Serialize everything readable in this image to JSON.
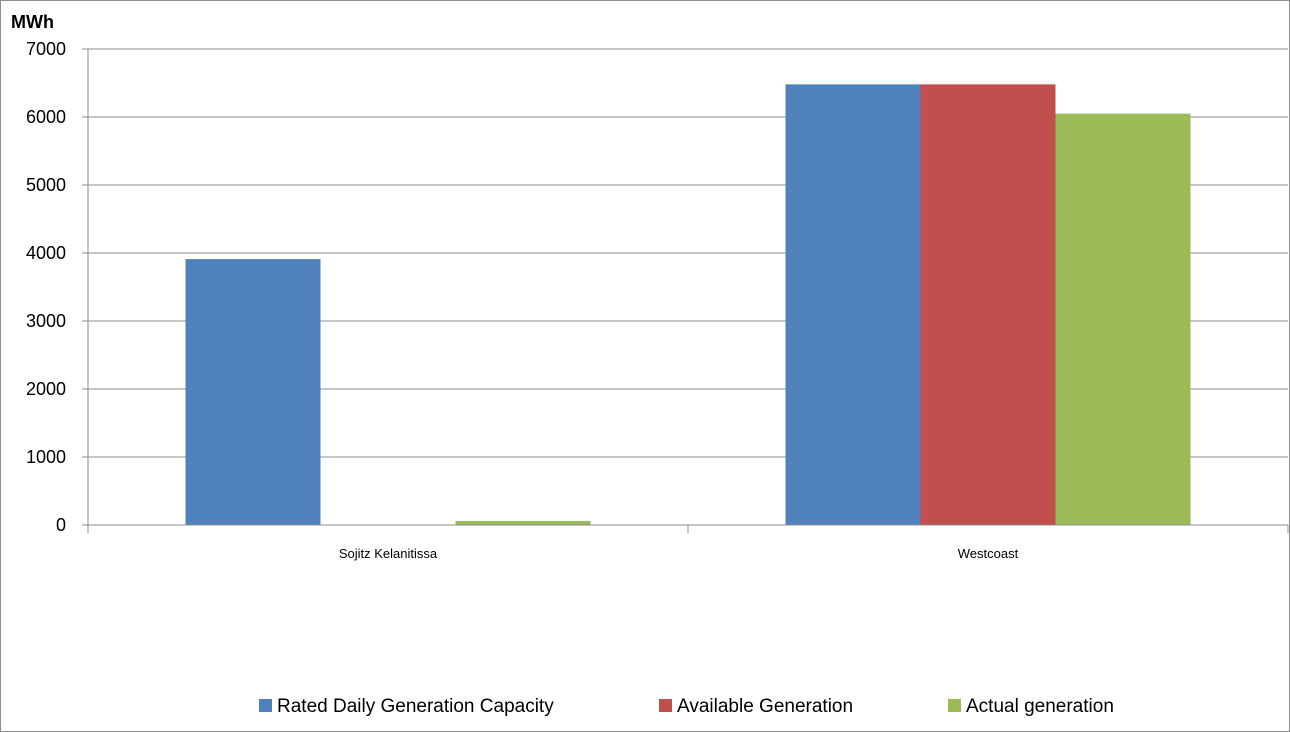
{
  "chart_data": {
    "type": "bar",
    "ylabel": "MWh",
    "ylim": [
      0,
      7000
    ],
    "yticks": [
      0,
      1000,
      2000,
      3000,
      4000,
      5000,
      6000,
      7000
    ],
    "categories": [
      "Sojitz Kelanitissa",
      "Westcoast"
    ],
    "series": [
      {
        "name": "Rated Daily Generation Capacity",
        "color": "#4F81BD",
        "values": [
          3910,
          6480
        ]
      },
      {
        "name": "Available Generation",
        "color": "#C0504D",
        "values": [
          0,
          6480
        ]
      },
      {
        "name": "Actual generation",
        "color": "#9BBB59",
        "values": [
          60,
          6050
        ]
      }
    ],
    "grid": true,
    "legend_position": "bottom"
  }
}
